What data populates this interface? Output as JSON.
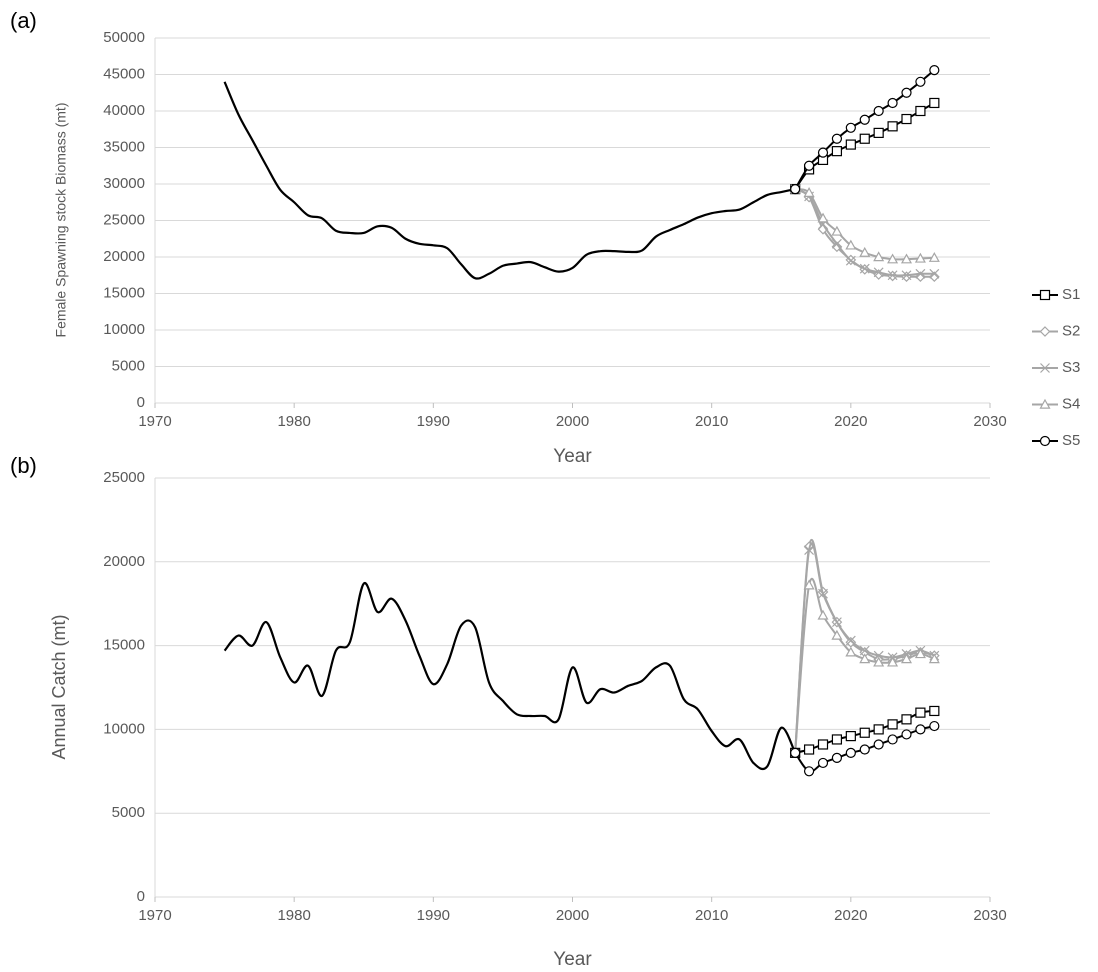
{
  "chart_data": [
    {
      "type": "line",
      "panel_label": "(a)",
      "x_label": "Year",
      "y_label": "Female Spawning stock Biomass (mt)",
      "xlim": [
        1970,
        2030
      ],
      "xticks": [
        1970,
        1980,
        1990,
        2000,
        2010,
        2020,
        2030
      ],
      "ylim": [
        0,
        50000
      ],
      "yticks": [
        0,
        5000,
        10000,
        15000,
        20000,
        25000,
        30000,
        35000,
        40000,
        45000,
        50000
      ],
      "grid": true,
      "legend": "right",
      "series": [
        {
          "color": "#000000",
          "marker": "none",
          "x": [
            1975,
            1976,
            1977,
            1978,
            1979,
            1980,
            1981,
            1982,
            1983,
            1984,
            1985,
            1986,
            1987,
            1988,
            1989,
            1990,
            1991,
            1992,
            1993,
            1994,
            1995,
            1996,
            1997,
            1998,
            1999,
            2000,
            2001,
            2002,
            2003,
            2004,
            2005,
            2006,
            2007,
            2008,
            2009,
            2010,
            2011,
            2012,
            2013,
            2014,
            2015,
            2016
          ],
          "values": [
            44000,
            39500,
            36000,
            32500,
            29200,
            27500,
            25700,
            25300,
            23600,
            23300,
            23300,
            24200,
            24000,
            22500,
            21800,
            21600,
            21200,
            19000,
            17100,
            17700,
            18800,
            19100,
            19300,
            18600,
            18000,
            18500,
            20300,
            20800,
            20800,
            20700,
            20900,
            22800,
            23700,
            24500,
            25400,
            26000,
            26300,
            26500,
            27500,
            28500,
            28900,
            29300
          ]
        },
        {
          "name": "S1",
          "color": "#000000",
          "marker": "square",
          "x": [
            2016,
            2017,
            2018,
            2019,
            2020,
            2021,
            2022,
            2023,
            2024,
            2025,
            2026
          ],
          "values": [
            29300,
            32000,
            33300,
            34500,
            35400,
            36200,
            37000,
            37900,
            38900,
            40000,
            41100
          ]
        },
        {
          "name": "S2",
          "color": "#a6a6a6",
          "marker": "diamond",
          "x": [
            2016,
            2017,
            2018,
            2019,
            2020,
            2021,
            2022,
            2023,
            2024,
            2025,
            2026
          ],
          "values": [
            29300,
            28200,
            23800,
            21400,
            19600,
            18300,
            17600,
            17400,
            17300,
            17300,
            17300
          ]
        },
        {
          "name": "S3",
          "color": "#a6a6a6",
          "marker": "x",
          "x": [
            2016,
            2017,
            2018,
            2019,
            2020,
            2021,
            2022,
            2023,
            2024,
            2025,
            2026
          ],
          "values": [
            29300,
            28300,
            24500,
            21800,
            19500,
            18400,
            17900,
            17500,
            17500,
            17700,
            17700
          ]
        },
        {
          "name": "S4",
          "color": "#a6a6a6",
          "marker": "triangle",
          "x": [
            2016,
            2017,
            2018,
            2019,
            2020,
            2021,
            2022,
            2023,
            2024,
            2025,
            2026
          ],
          "values": [
            29300,
            28800,
            25300,
            23500,
            21600,
            20600,
            20000,
            19700,
            19700,
            19800,
            19900
          ]
        },
        {
          "name": "S5",
          "color": "#000000",
          "marker": "circle",
          "x": [
            2016,
            2017,
            2018,
            2019,
            2020,
            2021,
            2022,
            2023,
            2024,
            2025,
            2026
          ],
          "values": [
            29300,
            32500,
            34300,
            36200,
            37700,
            38800,
            40000,
            41100,
            42500,
            44000,
            45600
          ]
        }
      ]
    },
    {
      "type": "line",
      "panel_label": "(b)",
      "x_label": "Year",
      "y_label": "Annual Catch (mt)",
      "xlim": [
        1970,
        2030
      ],
      "xticks": [
        1970,
        1980,
        1990,
        2000,
        2010,
        2020,
        2030
      ],
      "ylim": [
        0,
        25000
      ],
      "yticks": [
        0,
        5000,
        10000,
        15000,
        20000,
        25000
      ],
      "grid": true,
      "series": [
        {
          "color": "#000000",
          "marker": "none",
          "x": [
            1975,
            1976,
            1977,
            1978,
            1979,
            1980,
            1981,
            1982,
            1983,
            1984,
            1985,
            1986,
            1987,
            1988,
            1989,
            1990,
            1991,
            1992,
            1993,
            1994,
            1995,
            1996,
            1997,
            1998,
            1999,
            2000,
            2001,
            2002,
            2003,
            2004,
            2005,
            2006,
            2007,
            2008,
            2009,
            2010,
            2011,
            2012,
            2013,
            2014,
            2015,
            2016
          ],
          "values": [
            14700,
            15600,
            15000,
            16400,
            14300,
            12800,
            13800,
            12000,
            14700,
            15200,
            18700,
            17000,
            17800,
            16500,
            14400,
            12700,
            13900,
            16200,
            16100,
            12800,
            11700,
            10900,
            10800,
            10800,
            10600,
            13700,
            11600,
            12400,
            12200,
            12600,
            12900,
            13700,
            13800,
            11800,
            11200,
            9900,
            9000,
            9400,
            8000,
            7800,
            10100,
            8600
          ]
        },
        {
          "color": "#a6a6a6",
          "marker": "diamond",
          "x": [
            2016,
            2017,
            2018,
            2019,
            2020,
            2021,
            2022,
            2023,
            2024,
            2025,
            2026
          ],
          "values": [
            8600,
            20900,
            18200,
            16400,
            15200,
            14600,
            14200,
            14200,
            14400,
            14600,
            14400
          ]
        },
        {
          "color": "#a6a6a6",
          "marker": "x",
          "x": [
            2016,
            2017,
            2018,
            2019,
            2020,
            2021,
            2022,
            2023,
            2024,
            2025,
            2026
          ],
          "values": [
            8600,
            20700,
            18100,
            16400,
            15300,
            14700,
            14400,
            14300,
            14500,
            14700,
            14400
          ]
        },
        {
          "color": "#a6a6a6",
          "marker": "triangle",
          "x": [
            2016,
            2017,
            2018,
            2019,
            2020,
            2021,
            2022,
            2023,
            2024,
            2025,
            2026
          ],
          "values": [
            8600,
            18600,
            16800,
            15600,
            14600,
            14200,
            14000,
            14000,
            14200,
            14500,
            14200
          ]
        },
        {
          "color": "#000000",
          "marker": "square",
          "x": [
            2016,
            2017,
            2018,
            2019,
            2020,
            2021,
            2022,
            2023,
            2024,
            2025,
            2026
          ],
          "values": [
            8600,
            8800,
            9100,
            9400,
            9600,
            9800,
            10000,
            10300,
            10600,
            11000,
            11100
          ]
        },
        {
          "color": "#000000",
          "marker": "circle",
          "x": [
            2016,
            2017,
            2018,
            2019,
            2020,
            2021,
            2022,
            2023,
            2024,
            2025,
            2026
          ],
          "values": [
            8600,
            7500,
            8000,
            8300,
            8600,
            8800,
            9100,
            9400,
            9700,
            10000,
            10200
          ]
        }
      ]
    }
  ]
}
